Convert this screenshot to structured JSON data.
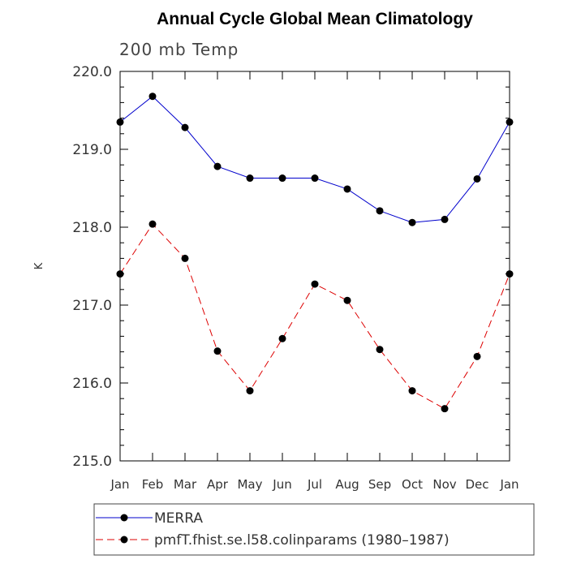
{
  "chart_data": {
    "type": "line",
    "title": "Annual Cycle Global Mean Climatology",
    "subtitle": "200 mb Temp",
    "ylabel": "K",
    "xlabel": "",
    "ylim": [
      215.0,
      220.0
    ],
    "yticks": [
      "215.0",
      "216.0",
      "217.0",
      "218.0",
      "219.0",
      "220.0"
    ],
    "categories": [
      "Jan",
      "Feb",
      "Mar",
      "Apr",
      "May",
      "Jun",
      "Jul",
      "Aug",
      "Sep",
      "Oct",
      "Nov",
      "Dec",
      "Jan"
    ],
    "series": [
      {
        "name": "MERRA",
        "color": "#0000cc",
        "dash": "solid",
        "values": [
          219.35,
          219.68,
          219.28,
          218.78,
          218.63,
          218.63,
          218.63,
          218.49,
          218.21,
          218.06,
          218.1,
          218.62,
          219.35
        ]
      },
      {
        "name": "pmfT.fhist.se.l58.colinparams (1980–1987)",
        "color": "#dd0000",
        "dash": "dashed",
        "values": [
          217.4,
          218.04,
          217.6,
          216.41,
          215.9,
          216.57,
          217.27,
          217.06,
          216.43,
          215.9,
          215.67,
          216.34,
          217.4
        ]
      }
    ],
    "grid": false,
    "legend_position": "bottom"
  }
}
